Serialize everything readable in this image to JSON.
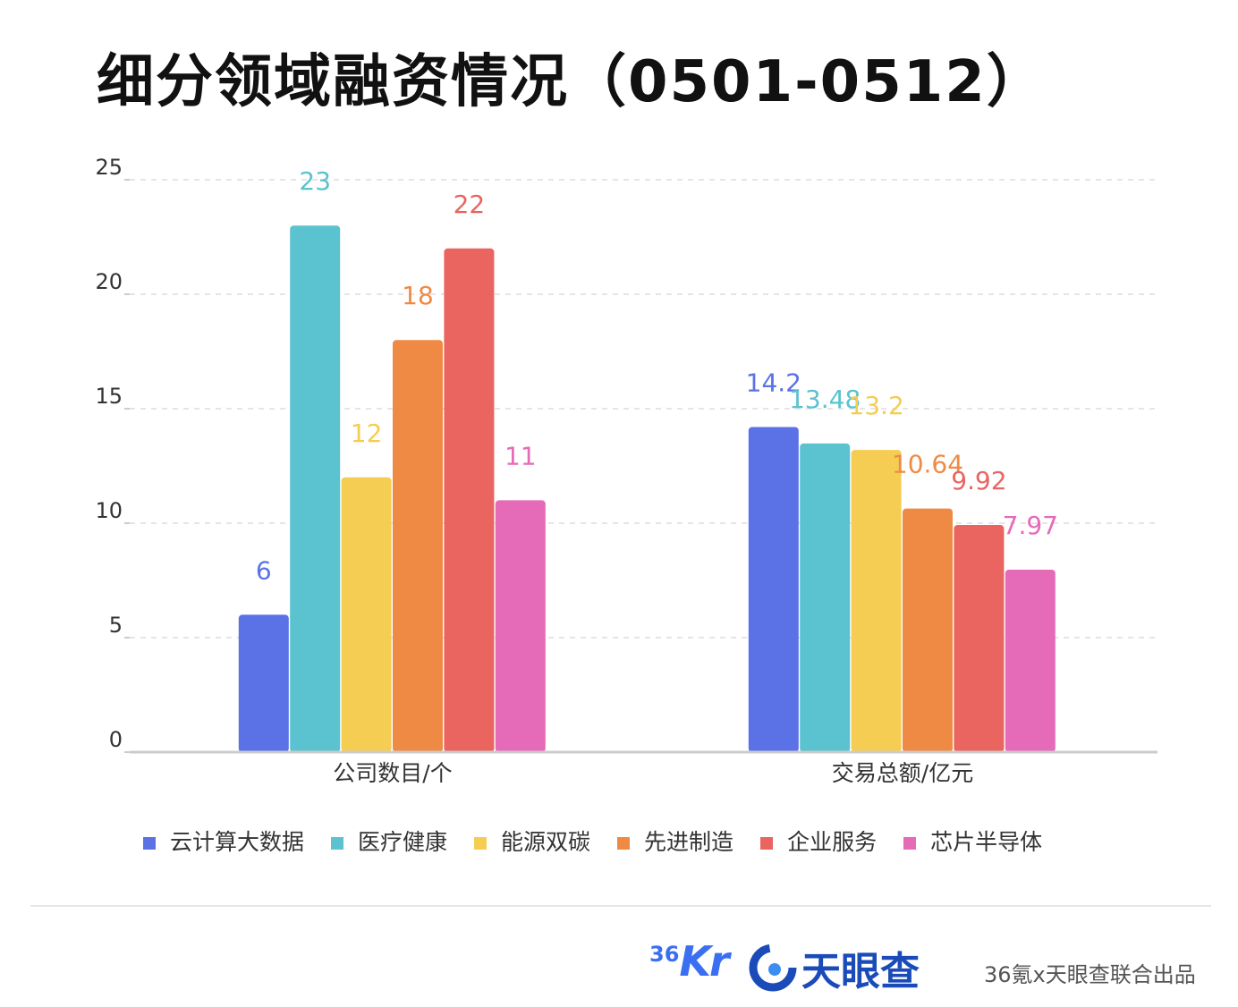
{
  "title": "细分领域融资情况（0501-0512）",
  "chart_data": {
    "type": "bar",
    "categories": [
      "公司数目/个",
      "交易总额/亿元"
    ],
    "series": [
      {
        "name": "云计算大数据",
        "color": "#5a72e6",
        "values": [
          6,
          14.2
        ],
        "labels": [
          "6",
          "14.2"
        ]
      },
      {
        "name": "医疗健康",
        "color": "#5bc2d0",
        "values": [
          23,
          13.48
        ],
        "labels": [
          "23",
          "13.48"
        ]
      },
      {
        "name": "能源双碳",
        "color": "#f5cd52",
        "values": [
          12,
          13.2
        ],
        "labels": [
          "12",
          "13.2"
        ]
      },
      {
        "name": "先进制造",
        "color": "#ef8a45",
        "values": [
          18,
          10.64
        ],
        "labels": [
          "18",
          "10.64"
        ]
      },
      {
        "name": "企业服务",
        "color": "#ea6460",
        "values": [
          22,
          9.92
        ],
        "labels": [
          "22",
          "9.92"
        ]
      },
      {
        "name": "芯片半导体",
        "color": "#e56ab8",
        "values": [
          11,
          7.97
        ],
        "labels": [
          "11",
          "7.97"
        ]
      }
    ],
    "ylim": [
      0,
      25
    ],
    "yticks": [
      "0",
      "5",
      "10",
      "15",
      "20",
      "25"
    ],
    "grid": true,
    "legend": "bottom"
  },
  "footer": {
    "logo_36kr_num": "36",
    "logo_36kr_text": "Kr",
    "logo_tyc_text": "天眼查",
    "credit": "36氪x天眼查联合出品"
  }
}
